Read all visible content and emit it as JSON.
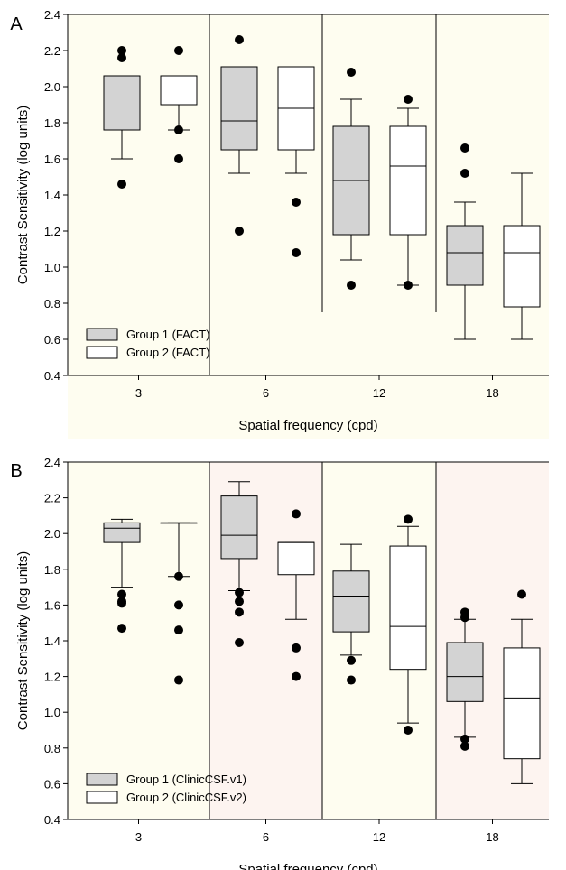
{
  "chart_data": [
    {
      "panel_label": "A",
      "type": "box",
      "ylabel": "Contrast Sensitivity (log units)",
      "xlabel": "Spatial frequency (cpd)",
      "ylim": [
        0.4,
        2.4
      ],
      "yticks": [
        "0.4",
        "0.6",
        "0.8",
        "1.0",
        "1.2",
        "1.4",
        "1.6",
        "1.8",
        "2.0",
        "2.2",
        "2.4"
      ],
      "categories": [
        "3",
        "6",
        "12",
        "18"
      ],
      "legend": {
        "placement": "lower-left",
        "items": [
          "Group 1 (FACT)",
          "Group 2 (FACT)"
        ]
      },
      "band_colors": [
        "#fefdf0",
        "#fefdf0",
        "#fefdf0",
        "#fefdf0"
      ],
      "series": [
        {
          "name": "Group 1 (FACT)",
          "fill": "#d3d3d3",
          "boxes": [
            {
              "category": "3",
              "min": 1.6,
              "q1": 1.76,
              "median": 2.06,
              "q3": 2.06,
              "max": 2.06,
              "outliers": [
                1.46,
                2.16,
                2.2
              ]
            },
            {
              "category": "6",
              "min": 1.52,
              "q1": 1.65,
              "median": 1.81,
              "q3": 2.11,
              "max": 2.11,
              "outliers": [
                1.2,
                2.26
              ]
            },
            {
              "category": "12",
              "min": 1.04,
              "q1": 1.18,
              "median": 1.48,
              "q3": 1.78,
              "max": 1.93,
              "outliers": [
                0.9,
                2.08
              ]
            },
            {
              "category": "18",
              "min": 0.6,
              "q1": 0.9,
              "median": 1.08,
              "q3": 1.23,
              "max": 1.36,
              "outliers": [
                1.52,
                1.66
              ]
            }
          ]
        },
        {
          "name": "Group 2 (FACT)",
          "fill": "#ffffff",
          "boxes": [
            {
              "category": "3",
              "min": 1.76,
              "q1": 1.9,
              "median": 1.9,
              "q3": 2.06,
              "max": 2.06,
              "outliers": [
                1.6,
                1.76,
                2.2
              ]
            },
            {
              "category": "6",
              "min": 1.52,
              "q1": 1.65,
              "median": 1.88,
              "q3": 2.11,
              "max": 2.11,
              "outliers": [
                1.08,
                1.36
              ]
            },
            {
              "category": "12",
              "min": 0.9,
              "q1": 1.18,
              "median": 1.56,
              "q3": 1.78,
              "max": 1.88,
              "outliers": [
                0.9,
                1.93
              ]
            },
            {
              "category": "18",
              "min": 0.6,
              "q1": 0.78,
              "median": 1.08,
              "q3": 1.23,
              "max": 1.52,
              "outliers": []
            }
          ]
        }
      ]
    },
    {
      "panel_label": "B",
      "type": "box",
      "ylabel": "Contrast Sensitivity (log units)",
      "xlabel": "Spatial frequency (cpd)",
      "ylim": [
        0.4,
        2.4
      ],
      "yticks": [
        "0.4",
        "0.6",
        "0.8",
        "1.0",
        "1.2",
        "1.4",
        "1.6",
        "1.8",
        "2.0",
        "2.2",
        "2.4"
      ],
      "categories": [
        "3",
        "6",
        "12",
        "18"
      ],
      "legend": {
        "placement": "lower-left",
        "items": [
          "Group 1 (ClinicCSF.v1)",
          "Group 2 (ClinicCSF.v2)"
        ]
      },
      "band_colors": [
        "#fefdf0",
        "#fdf4f0",
        "#fefdf0",
        "#fdf4f0"
      ],
      "series": [
        {
          "name": "Group 1 (ClinicCSF.v1)",
          "fill": "#d3d3d3",
          "boxes": [
            {
              "category": "3",
              "min": 1.7,
              "q1": 1.95,
              "median": 2.03,
              "q3": 2.06,
              "max": 2.08,
              "outliers": [
                1.47,
                1.61,
                1.62,
                1.66
              ]
            },
            {
              "category": "6",
              "min": 1.68,
              "q1": 1.86,
              "median": 1.99,
              "q3": 2.21,
              "max": 2.29,
              "outliers": [
                1.39,
                1.56,
                1.62,
                1.67
              ]
            },
            {
              "category": "12",
              "min": 1.32,
              "q1": 1.45,
              "median": 1.65,
              "q3": 1.79,
              "max": 1.94,
              "outliers": [
                1.18,
                1.29
              ]
            },
            {
              "category": "18",
              "min": 0.86,
              "q1": 1.06,
              "median": 1.2,
              "q3": 1.39,
              "max": 1.52,
              "outliers": [
                0.81,
                0.85,
                1.53,
                1.56
              ]
            }
          ]
        },
        {
          "name": "Group 2 (ClinicCSF.v2)",
          "fill": "#ffffff",
          "boxes": [
            {
              "category": "3",
              "min": 1.76,
              "q1": 2.06,
              "median": 2.06,
              "q3": 2.06,
              "max": 2.06,
              "outliers": [
                1.18,
                1.46,
                1.6,
                1.76
              ]
            },
            {
              "category": "6",
              "min": 1.52,
              "q1": 1.77,
              "median": 1.95,
              "q3": 1.95,
              "max": 1.95,
              "outliers": [
                1.2,
                1.36,
                2.11
              ]
            },
            {
              "category": "12",
              "min": 0.94,
              "q1": 1.24,
              "median": 1.48,
              "q3": 1.93,
              "max": 2.04,
              "outliers": [
                0.9,
                2.08
              ]
            },
            {
              "category": "18",
              "min": 0.6,
              "q1": 0.74,
              "median": 1.08,
              "q3": 1.36,
              "max": 1.52,
              "outliers": [
                1.66
              ]
            }
          ]
        }
      ]
    }
  ]
}
